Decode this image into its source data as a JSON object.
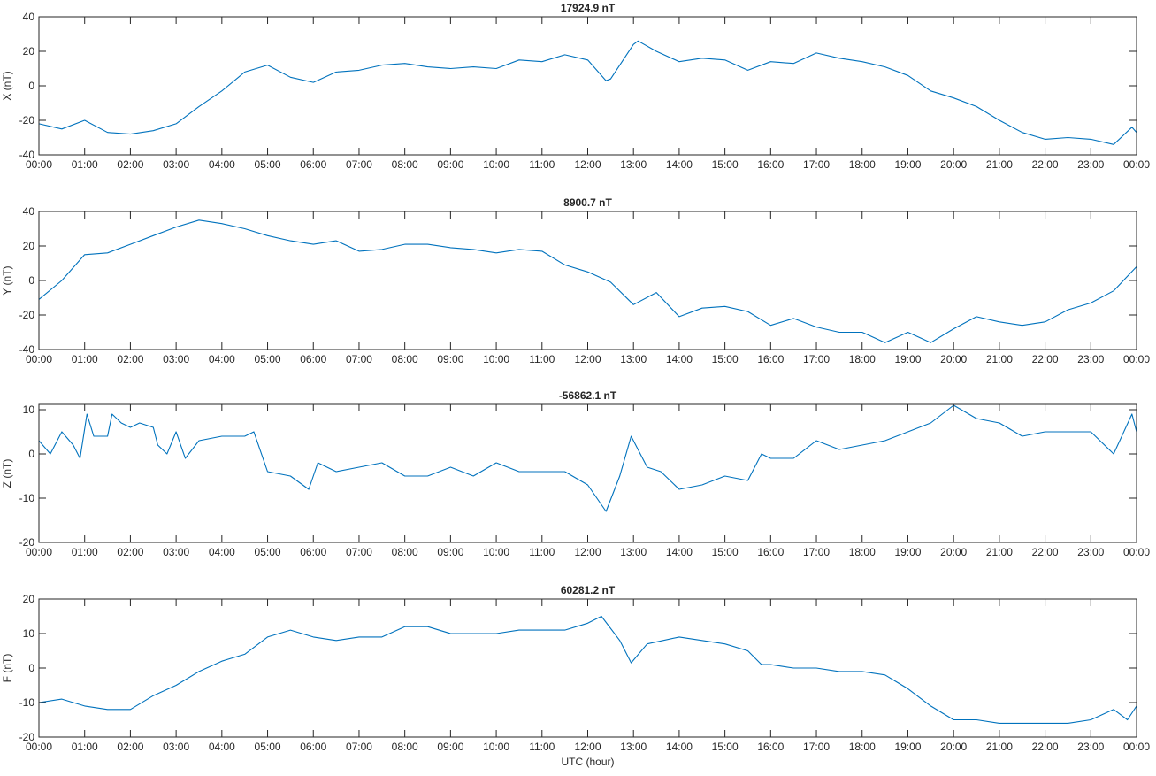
{
  "chart_data": [
    {
      "type": "line",
      "title": "17924.9 nT",
      "ylabel": "X (nT)",
      "xlabel": "",
      "ylim": [
        -40,
        40
      ],
      "yticks": [
        -40,
        -20,
        0,
        20,
        40
      ],
      "color": "#0072BD",
      "x": [
        0,
        0.5,
        1,
        1.5,
        2,
        2.5,
        3,
        3.5,
        4,
        4.5,
        5,
        5.5,
        6,
        6.5,
        7,
        7.5,
        8,
        8.5,
        9,
        9.5,
        10,
        10.5,
        11,
        11.5,
        12,
        12.4,
        12.5,
        13,
        13.1,
        13.5,
        14,
        14.5,
        15,
        15.5,
        16,
        16.5,
        17,
        17.5,
        18,
        18.5,
        19,
        19.5,
        20,
        20.5,
        21,
        21.5,
        22,
        22.5,
        23,
        23.5,
        23.9,
        24
      ],
      "y": [
        -22,
        -25,
        -20,
        -27,
        -28,
        -26,
        -22,
        -12,
        -3,
        8,
        12,
        5,
        2,
        8,
        9,
        12,
        13,
        11,
        10,
        11,
        10,
        15,
        14,
        18,
        15,
        3,
        4,
        24,
        26,
        20,
        14,
        16,
        15,
        9,
        14,
        13,
        19,
        16,
        14,
        11,
        6,
        -3,
        -7,
        -12,
        -20,
        -27,
        -31,
        -30,
        -31,
        -34,
        -24,
        -27
      ]
    },
    {
      "type": "line",
      "title": "8900.7 nT",
      "ylabel": "Y (nT)",
      "xlabel": "",
      "ylim": [
        -40,
        40
      ],
      "yticks": [
        -40,
        -20,
        0,
        20,
        40
      ],
      "color": "#0072BD",
      "x": [
        0,
        0.5,
        1,
        1.5,
        2,
        2.5,
        3,
        3.5,
        4,
        4.5,
        5,
        5.5,
        6,
        6.5,
        7,
        7.5,
        8,
        8.5,
        9,
        9.5,
        10,
        10.5,
        11,
        11.5,
        12,
        12.5,
        13,
        13.5,
        14,
        14.5,
        15,
        15.5,
        16,
        16.5,
        17,
        17.5,
        18,
        18.5,
        19,
        19.5,
        20,
        20.5,
        21,
        21.5,
        22,
        22.5,
        23,
        23.5,
        24
      ],
      "y": [
        -11,
        0,
        15,
        16,
        21,
        26,
        31,
        35,
        33,
        30,
        26,
        23,
        21,
        23,
        17,
        18,
        21,
        21,
        19,
        18,
        16,
        18,
        17,
        9,
        5,
        -1,
        -14,
        -7,
        -21,
        -16,
        -15,
        -18,
        -26,
        -22,
        -27,
        -30,
        -30,
        -36,
        -30,
        -36,
        -28,
        -21,
        -24,
        -26,
        -24,
        -17,
        -13,
        -6,
        8
      ]
    },
    {
      "type": "line",
      "title": "-56862.1 nT",
      "ylabel": "Z (nT)",
      "xlabel": "",
      "ylim": [
        -20,
        11.2
      ],
      "yticks": [
        -20,
        -10,
        0,
        10
      ],
      "color": "#0072BD",
      "x": [
        0,
        0.25,
        0.5,
        0.75,
        0.9,
        1.05,
        1.2,
        1.5,
        1.6,
        1.8,
        2,
        2.2,
        2.5,
        2.6,
        2.8,
        3,
        3.2,
        3.5,
        4,
        4.5,
        4.7,
        5,
        5.5,
        5.9,
        6.1,
        6.5,
        7,
        7.5,
        8,
        8.5,
        9,
        9.5,
        10,
        10.5,
        11,
        11.5,
        12,
        12.4,
        12.7,
        12.95,
        13.3,
        13.6,
        14,
        14.5,
        15,
        15.5,
        15.8,
        16,
        16.5,
        17,
        17.5,
        18,
        18.5,
        19,
        19.5,
        20,
        20.5,
        21,
        21.5,
        22,
        22.5,
        23,
        23.5,
        23.9,
        24
      ],
      "y": [
        3,
        0,
        5,
        2,
        -1,
        9,
        4,
        4,
        9,
        7,
        6,
        7,
        6,
        2,
        0,
        5,
        -1,
        3,
        4,
        4,
        5,
        -4,
        -5,
        -8,
        -2,
        -4,
        -3,
        -2,
        -5,
        -5,
        -3,
        -5,
        -2,
        -4,
        -4,
        -4,
        -7,
        -13,
        -5,
        4,
        -3,
        -4,
        -8,
        -7,
        -5,
        -6,
        0,
        -1,
        -1,
        3,
        1,
        2,
        3,
        5,
        7,
        11,
        8,
        7,
        4,
        5,
        5,
        5,
        0,
        9,
        5
      ]
    },
    {
      "type": "line",
      "title": "60281.2 nT",
      "ylabel": "F (nT)",
      "xlabel": "UTC (hour)",
      "ylim": [
        -20,
        20
      ],
      "yticks": [
        -20,
        -10,
        0,
        10,
        20
      ],
      "color": "#0072BD",
      "x": [
        0,
        0.5,
        1,
        1.5,
        2,
        2.5,
        3,
        3.5,
        4,
        4.5,
        5,
        5.5,
        6,
        6.5,
        7,
        7.5,
        8,
        8.5,
        9,
        9.5,
        10,
        10.5,
        11,
        11.5,
        12,
        12.3,
        12.7,
        12.95,
        13.3,
        14,
        14.5,
        15,
        15.5,
        15.8,
        16,
        16.5,
        17,
        17.5,
        18,
        18.5,
        19,
        19.5,
        20,
        20.5,
        21,
        21.5,
        22,
        22.5,
        23,
        23.5,
        23.8,
        24
      ],
      "y": [
        -10,
        -9,
        -11,
        -12,
        -12,
        -8,
        -5,
        -1,
        2,
        4,
        9,
        11,
        9,
        8,
        9,
        9,
        12,
        12,
        10,
        10,
        10,
        11,
        11,
        11,
        13,
        15,
        8,
        1.5,
        7,
        9,
        8,
        7,
        5,
        1,
        1,
        0,
        0,
        -1,
        -1,
        -2,
        -6,
        -11,
        -15,
        -15,
        -16,
        -16,
        -16,
        -16,
        -15,
        -12,
        -15,
        -11
      ]
    }
  ],
  "xticks": [
    "00:00",
    "01:00",
    "02:00",
    "03:00",
    "04:00",
    "05:00",
    "06:00",
    "07:00",
    "08:00",
    "09:00",
    "10:00",
    "11:00",
    "12:00",
    "13:00",
    "14:00",
    "15:00",
    "16:00",
    "17:00",
    "18:00",
    "19:00",
    "20:00",
    "21:00",
    "22:00",
    "23:00",
    "00:00"
  ],
  "xlim": [
    0,
    24
  ]
}
